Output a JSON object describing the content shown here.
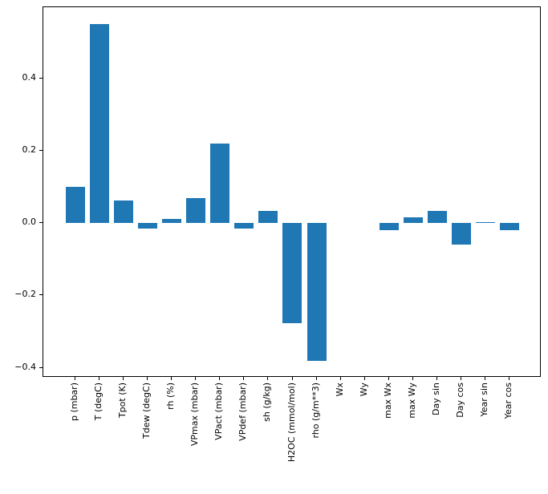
{
  "figure": {
    "background": "#ffffff",
    "frame_color": "#000000",
    "tick_color": "#000000",
    "text_color": "#000000"
  },
  "chart_data": {
    "type": "bar",
    "title": "",
    "xlabel": "",
    "ylabel": "",
    "grid": false,
    "legend": null,
    "bar_color": "#1f77b4",
    "bar_width_units": 0.8,
    "xlim": [
      -1.34,
      19.34
    ],
    "ylim": [
      -0.427,
      0.596
    ],
    "categories": [
      "p (mbar)",
      "T (degC)",
      "Tpot (K)",
      "Tdew (degC)",
      "rh (%)",
      "VPmax (mbar)",
      "VPact (mbar)",
      "VPdef (mbar)",
      "sh (g/kg)",
      "H2OC (mmol/mol)",
      "rho (g/m**3)",
      "Wx",
      "Wy",
      "max Wx",
      "max Wy",
      "Day sin",
      "Day cos",
      "Year sin",
      "Year cos"
    ],
    "values": [
      0.099,
      0.549,
      0.063,
      -0.016,
      0.011,
      0.068,
      0.219,
      -0.016,
      0.033,
      -0.276,
      -0.38,
      0.0,
      0.0,
      -0.021,
      0.016,
      0.033,
      -0.059,
      0.002,
      -0.019
    ],
    "yticks": [
      {
        "value": -0.4,
        "label": "−0.4"
      },
      {
        "value": -0.2,
        "label": "−0.2"
      },
      {
        "value": 0.0,
        "label": "0.0"
      },
      {
        "value": 0.2,
        "label": "0.2"
      },
      {
        "value": 0.4,
        "label": "0.4"
      }
    ]
  }
}
